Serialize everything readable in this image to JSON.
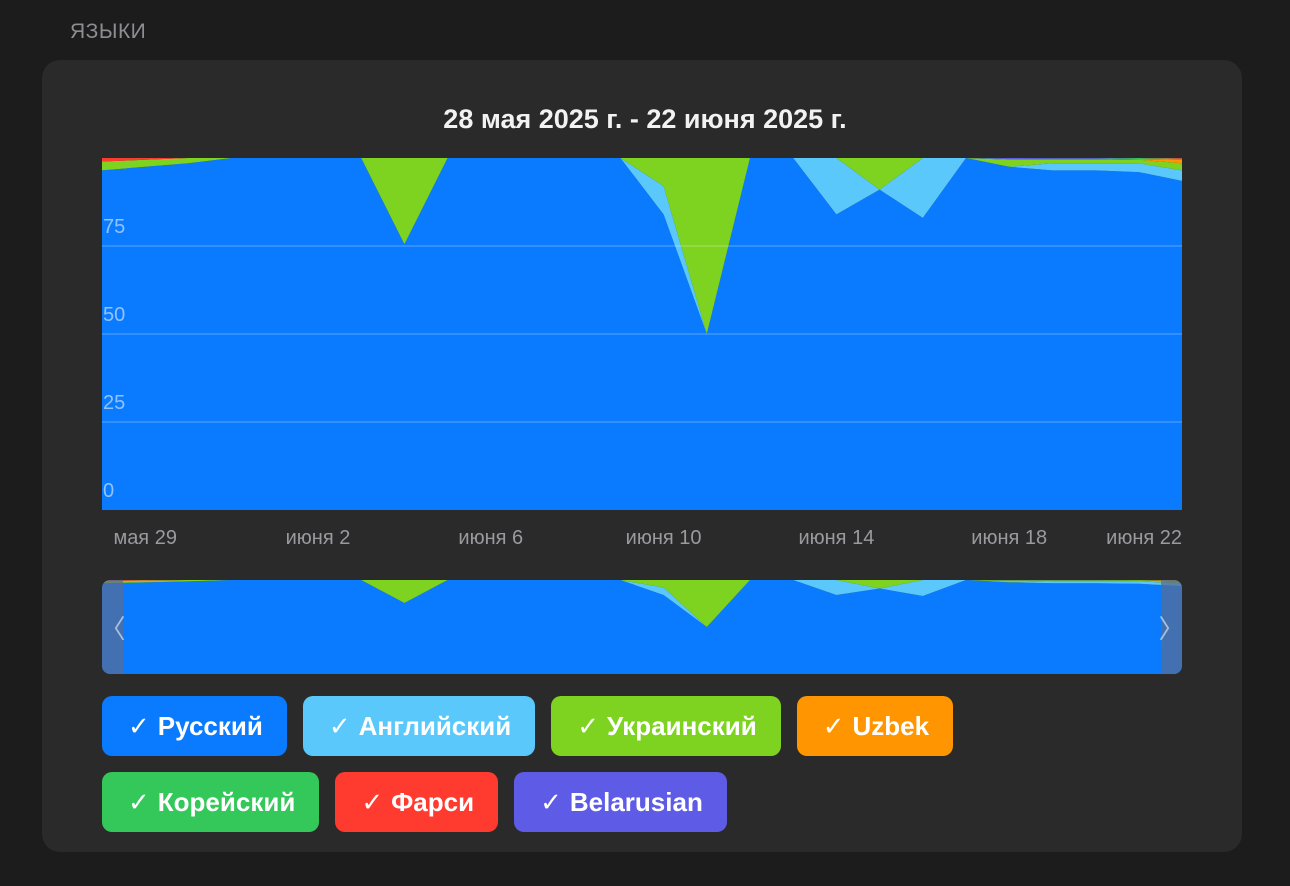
{
  "section_label": "ЯЗЫКИ",
  "legend": [
    {
      "label": "Русский",
      "color": "#0a7aff"
    },
    {
      "label": "Английский",
      "color": "#5ac8fa"
    },
    {
      "label": "Украинский",
      "color": "#7ed321"
    },
    {
      "label": "Uzbek",
      "color": "#ff9500"
    },
    {
      "label": "Корейский",
      "color": "#34c759"
    },
    {
      "label": "Фарси",
      "color": "#ff3b30"
    },
    {
      "label": "Belarusian",
      "color": "#5e5ce6"
    }
  ],
  "check_mark": "✓",
  "chart_data": {
    "type": "area",
    "stacked": true,
    "normalized_percent": true,
    "title": "28 мая 2025 г. - 22 июня 2025 г.",
    "x": [
      "May 28",
      "May 29",
      "May 30",
      "May 31",
      "Jun 1",
      "Jun 2",
      "Jun 3",
      "Jun 4",
      "Jun 5",
      "Jun 6",
      "Jun 7",
      "Jun 8",
      "Jun 9",
      "Jun 10",
      "Jun 11",
      "Jun 12",
      "Jun 13",
      "Jun 14",
      "Jun 15",
      "Jun 16",
      "Jun 17",
      "Jun 18",
      "Jun 19",
      "Jun 20",
      "Jun 21",
      "Jun 22"
    ],
    "x_tick_labels": [
      "мая 29",
      "июня 2",
      "июня 6",
      "июня 10",
      "июня 14",
      "июня 18",
      "июня 22"
    ],
    "x_tick_positions": [
      1,
      5,
      9,
      13,
      17,
      21,
      25
    ],
    "y_tick_labels": [
      "0",
      "25",
      "50",
      "75"
    ],
    "y_ticks": [
      0,
      25,
      50,
      75
    ],
    "ylim": [
      0,
      100
    ],
    "series": [
      {
        "name": "Русский",
        "color": "#0a7aff",
        "values": [
          96.5,
          97.5,
          98.5,
          100,
          100,
          100,
          100,
          75.5,
          100,
          100,
          100,
          100,
          100,
          84,
          50,
          100,
          100,
          84,
          91,
          83,
          100,
          97.5,
          96.5,
          96.5,
          96,
          93.5
        ]
      },
      {
        "name": "Английский",
        "color": "#5ac8fa",
        "values": [
          0,
          0,
          0,
          0,
          0,
          0,
          0,
          0,
          0,
          0,
          0,
          0,
          0,
          8,
          0,
          0,
          0,
          16,
          0,
          17,
          0,
          0,
          2,
          2,
          2.5,
          3
        ]
      },
      {
        "name": "Украинский",
        "color": "#7ed321",
        "values": [
          2.5,
          2,
          1.5,
          0,
          0,
          0,
          0,
          24.5,
          0,
          0,
          0,
          0,
          0,
          8,
          50,
          0,
          0,
          0,
          9,
          0,
          0,
          2,
          1,
          1,
          1,
          2
        ]
      },
      {
        "name": "Uzbek",
        "color": "#ff9500",
        "values": [
          0,
          0,
          0,
          0,
          0,
          0,
          0,
          0,
          0,
          0,
          0,
          0,
          0,
          0,
          0,
          0,
          0,
          0,
          0,
          0,
          0,
          0,
          0,
          0,
          0.2,
          1
        ]
      },
      {
        "name": "Корейский",
        "color": "#34c759",
        "values": [
          0,
          0,
          0,
          0,
          0,
          0,
          0,
          0,
          0,
          0,
          0,
          0,
          0,
          0,
          0,
          0,
          0,
          0,
          0,
          0,
          0,
          0.2,
          0.3,
          0.3,
          0.3,
          0.3
        ]
      },
      {
        "name": "Фарси",
        "color": "#ff3b30",
        "values": [
          1,
          0.5,
          0,
          0,
          0,
          0,
          0,
          0,
          0,
          0,
          0,
          0,
          0,
          0,
          0,
          0,
          0,
          0,
          0,
          0,
          0,
          0,
          0,
          0,
          0,
          0.2
        ]
      },
      {
        "name": "Belarusian",
        "color": "#5e5ce6",
        "values": [
          0,
          0,
          0,
          0,
          0,
          0,
          0,
          0,
          0,
          0,
          0,
          0,
          0,
          0,
          0,
          0,
          0,
          0,
          0,
          0,
          0,
          0.3,
          0.2,
          0.2,
          0,
          0
        ]
      }
    ],
    "grid": true,
    "legend_position": "bottom"
  }
}
